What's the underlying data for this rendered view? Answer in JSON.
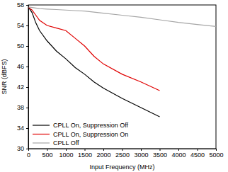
{
  "chart_data": {
    "type": "line",
    "x_label": "Input Frequency (MHz)",
    "y_label": "SNR (dBFS)",
    "x": [
      10,
      100,
      200,
      300,
      500,
      750,
      1000,
      1250,
      1500,
      1750,
      2000,
      2500,
      3000,
      3500,
      4000,
      4500,
      5000
    ],
    "series": [
      {
        "name": "CPLL On, Suppression Off",
        "color": "#000000",
        "values": [
          57.5,
          56.5,
          54.5,
          53,
          51,
          49,
          47.5,
          45.8,
          44.5,
          43,
          41.8,
          39.8,
          38,
          36.2,
          null,
          null,
          null
        ]
      },
      {
        "name": "CPLL On, Suppression On",
        "color": "#e00000",
        "values": [
          57.5,
          57,
          56,
          55,
          54,
          53.5,
          53,
          51.5,
          50,
          48,
          46.5,
          44.5,
          43,
          41.3,
          null,
          null,
          null
        ]
      },
      {
        "name": "CPLL Off",
        "color": "#a6a6a6",
        "values": [
          57.6,
          57.5,
          57.4,
          57.3,
          57.2,
          57.1,
          57,
          56.9,
          56.8,
          56.6,
          56.4,
          56,
          55.6,
          55.1,
          54.6,
          54.2,
          53.8
        ]
      }
    ],
    "xlim": [
      0,
      5000
    ],
    "ylim": [
      30,
      58
    ],
    "xticks": [
      0,
      500,
      1000,
      1500,
      2000,
      2500,
      3000,
      3500,
      4000,
      4500,
      5000
    ],
    "yticks": [
      30,
      34,
      38,
      42,
      46,
      50,
      54,
      58
    ],
    "grid": false,
    "legend": "lower left"
  }
}
